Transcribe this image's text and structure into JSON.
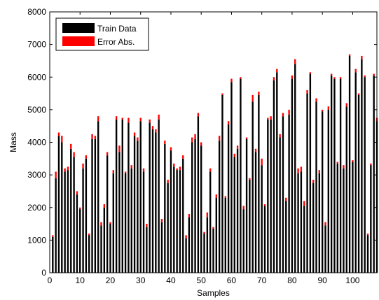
{
  "chart_data": {
    "type": "bar",
    "stacked": true,
    "xlabel": "Samples",
    "ylabel": "Mass",
    "xlim": [
      0,
      108
    ],
    "ylim": [
      0,
      8000
    ],
    "xticks": [
      0,
      10,
      20,
      30,
      40,
      50,
      60,
      70,
      80,
      90,
      100
    ],
    "yticks": [
      0,
      1000,
      2000,
      3000,
      4000,
      5000,
      6000,
      7000,
      8000
    ],
    "grid": false,
    "legend_position": "top-left",
    "x": [
      1,
      2,
      3,
      4,
      5,
      6,
      7,
      8,
      9,
      10,
      11,
      12,
      13,
      14,
      15,
      16,
      17,
      18,
      19,
      20,
      21,
      22,
      23,
      24,
      25,
      26,
      27,
      28,
      29,
      30,
      31,
      32,
      33,
      34,
      35,
      36,
      37,
      38,
      39,
      40,
      41,
      42,
      43,
      44,
      45,
      46,
      47,
      48,
      49,
      50,
      51,
      52,
      53,
      54,
      55,
      56,
      57,
      58,
      59,
      60,
      61,
      62,
      63,
      64,
      65,
      66,
      67,
      68,
      69,
      70,
      71,
      72,
      73,
      74,
      75,
      76,
      77,
      78,
      79,
      80,
      81,
      82,
      83,
      84,
      85,
      86,
      87,
      88,
      89,
      90,
      91,
      92,
      93,
      94,
      95,
      96,
      97,
      98,
      99,
      100,
      101,
      102,
      103,
      104,
      105,
      106,
      107,
      108
    ],
    "series": [
      {
        "name": "Train Data",
        "color": "#000000",
        "values": [
          1100,
          2900,
          4200,
          4000,
          3100,
          3150,
          3800,
          3550,
          2400,
          1950,
          3200,
          3500,
          1150,
          4100,
          4100,
          4650,
          1450,
          2000,
          3600,
          1500,
          3050,
          4700,
          3700,
          4700,
          3050,
          4600,
          3200,
          4200,
          4050,
          4650,
          3100,
          1400,
          4600,
          4400,
          4300,
          4700,
          1550,
          3950,
          2750,
          3750,
          3250,
          3150,
          3150,
          3500,
          1050,
          1700,
          4000,
          4100,
          4800,
          3900,
          1200,
          1700,
          3100,
          1350,
          2300,
          4050,
          5450,
          2300,
          4550,
          5850,
          3550,
          3800,
          5950,
          1950,
          4100,
          2850,
          5250,
          3700,
          5450,
          3300,
          2050,
          4700,
          4700,
          5900,
          6150,
          4150,
          4800,
          2200,
          4850,
          5950,
          6400,
          3050,
          3100,
          2050,
          5500,
          6100,
          2750,
          5250,
          3050,
          4950,
          1450,
          5000,
          6050,
          5950,
          3350,
          5950,
          3200,
          5100,
          6650,
          3400,
          6150,
          5450,
          6550,
          6000,
          1150,
          3300,
          6050,
          4650
        ]
      },
      {
        "name": "Error Abs.",
        "color": "#ff0000",
        "values": [
          50,
          200,
          100,
          200,
          100,
          100,
          150,
          150,
          100,
          50,
          150,
          100,
          50,
          150,
          100,
          150,
          100,
          100,
          100,
          50,
          100,
          100,
          200,
          50,
          50,
          150,
          100,
          100,
          100,
          100,
          100,
          100,
          100,
          100,
          100,
          150,
          100,
          100,
          100,
          100,
          100,
          50,
          100,
          100,
          100,
          100,
          150,
          150,
          100,
          100,
          50,
          150,
          100,
          50,
          100,
          150,
          50,
          50,
          100,
          100,
          100,
          100,
          50,
          100,
          50,
          50,
          200,
          100,
          100,
          200,
          50,
          50,
          100,
          100,
          100,
          100,
          100,
          100,
          150,
          100,
          150,
          150,
          150,
          150,
          100,
          50,
          100,
          100,
          100,
          50,
          100,
          100,
          50,
          50,
          50,
          50,
          100,
          100,
          50,
          50,
          100,
          50,
          100,
          50,
          50,
          50,
          50,
          100
        ]
      }
    ]
  }
}
